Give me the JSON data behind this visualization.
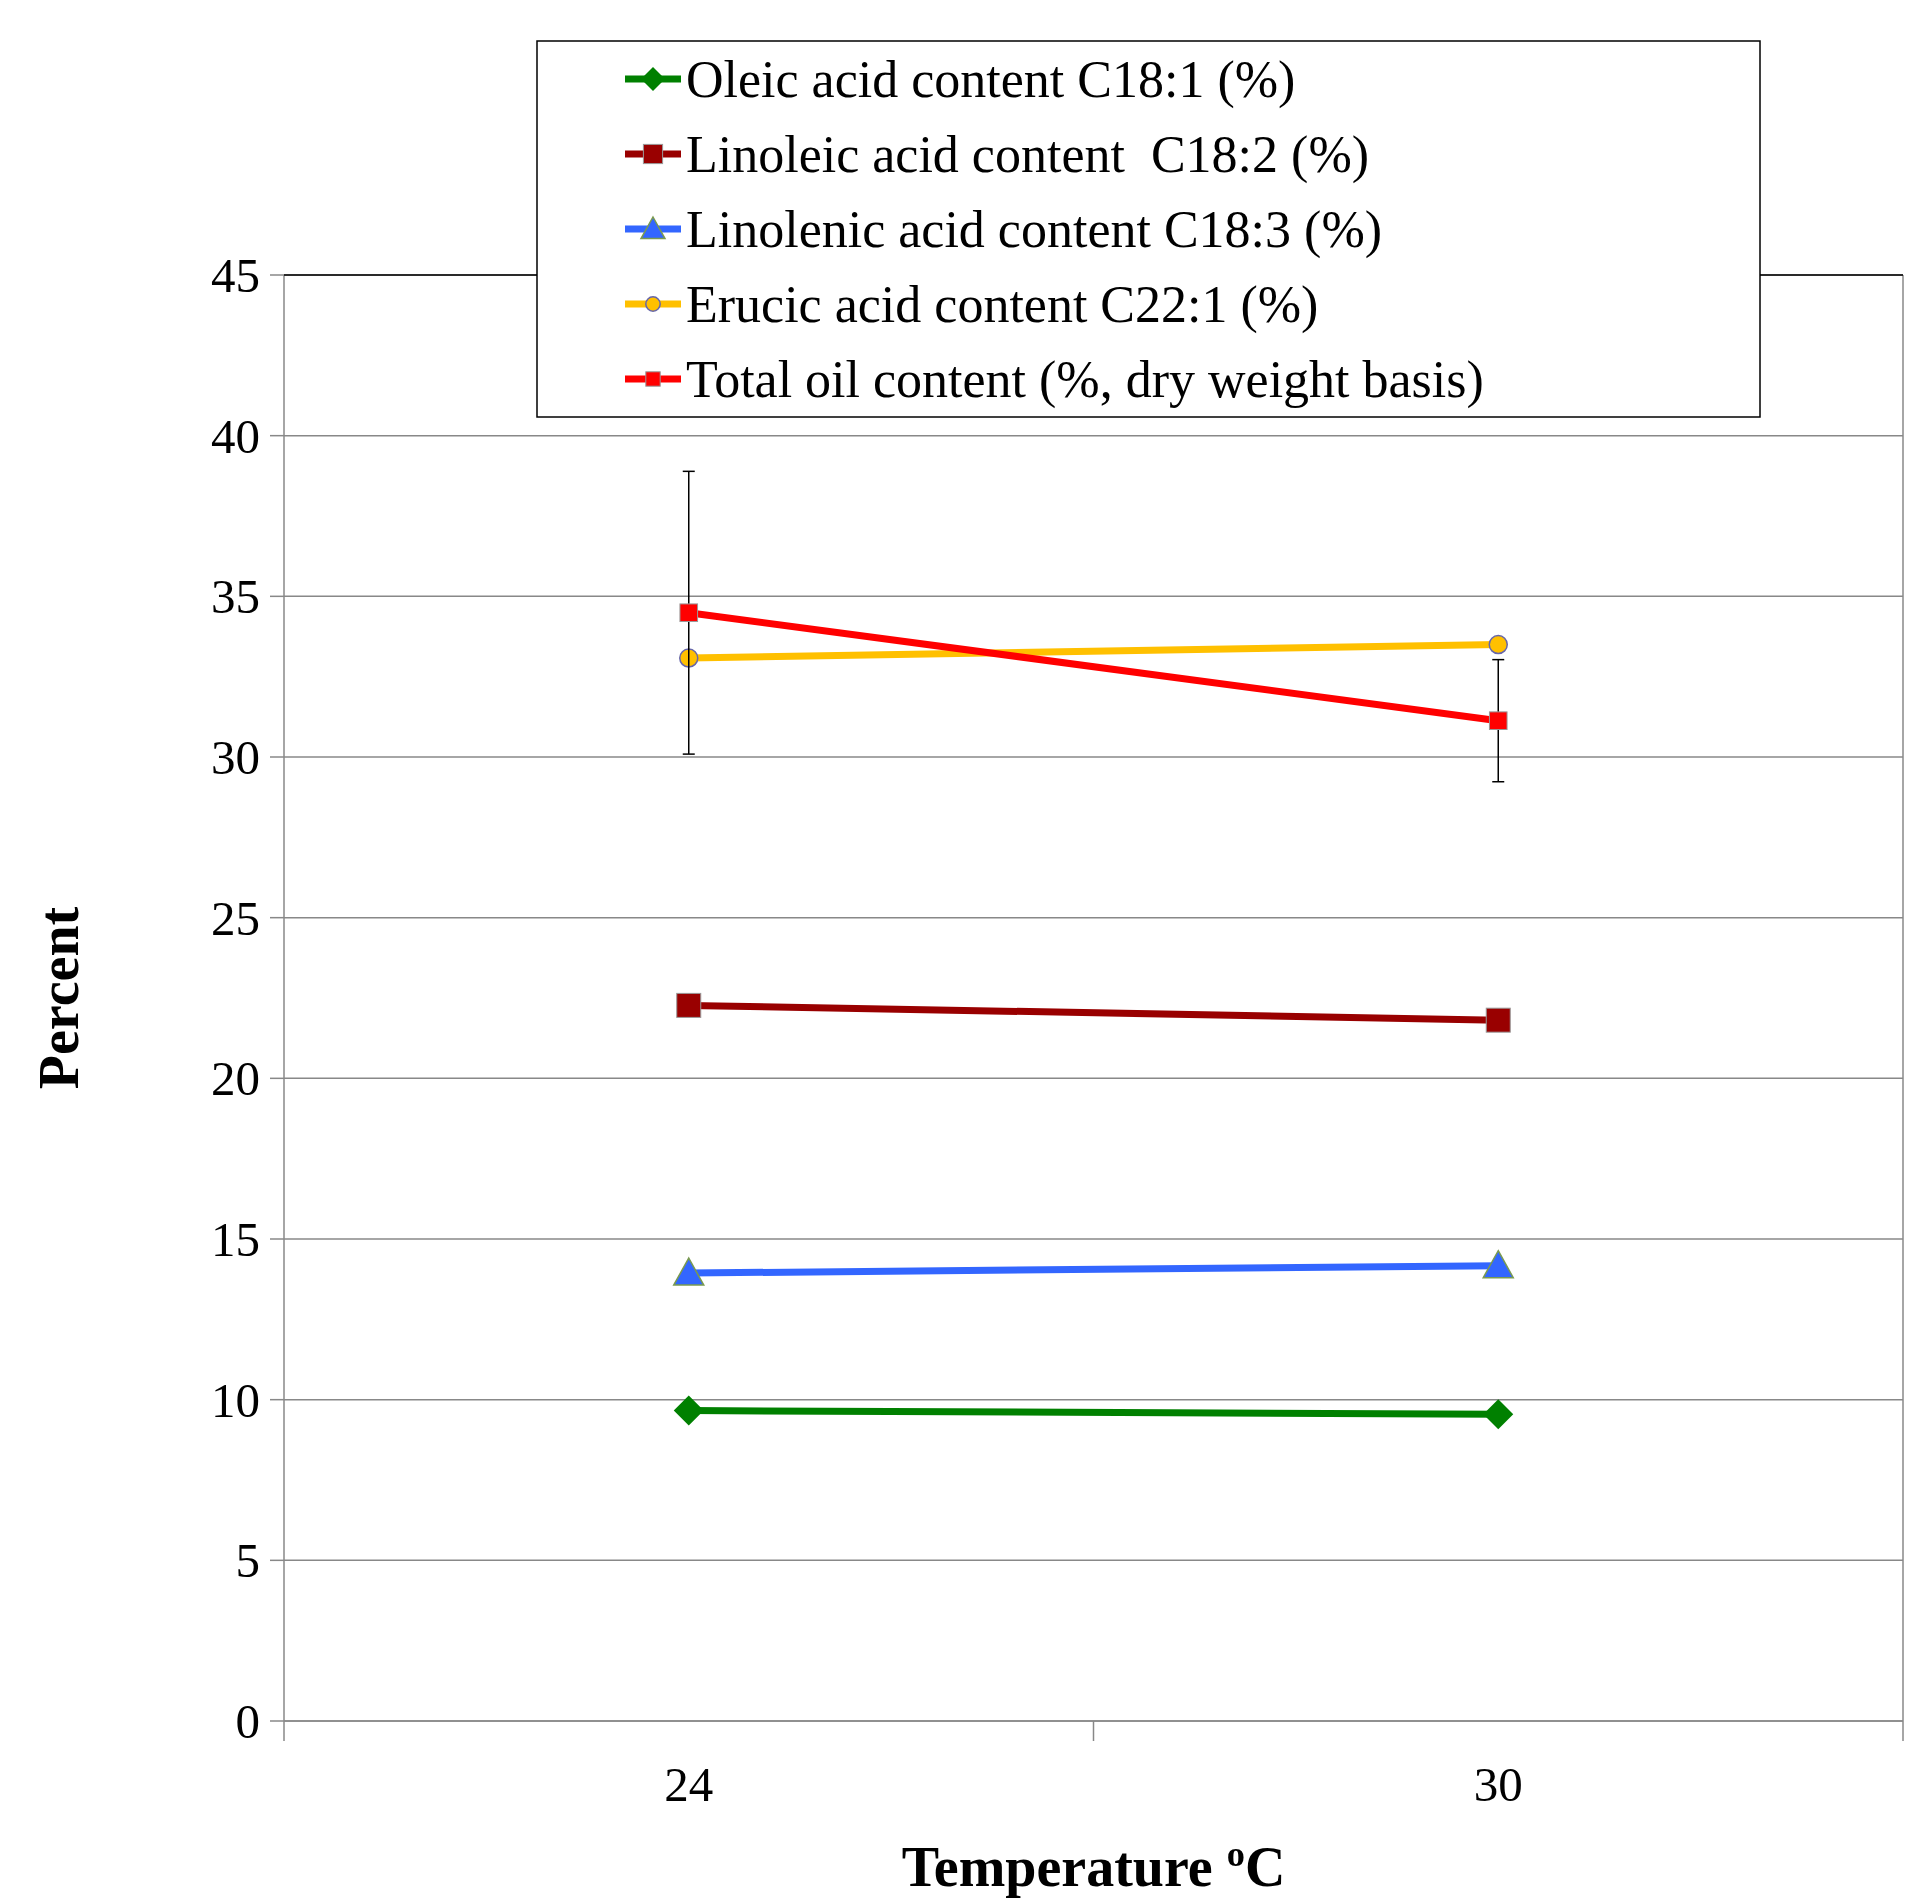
{
  "chart_data": {
    "type": "line",
    "xlabel": "Temperature $^{o}$C",
    "ylabel": "Percent",
    "categories": [
      "24",
      "30"
    ],
    "ylim": [
      0,
      45
    ],
    "yticks": [
      0,
      5,
      10,
      15,
      20,
      25,
      30,
      35,
      40,
      45
    ],
    "grid": "y",
    "legend": "top",
    "line_style": "solid",
    "series": [
      {
        "name": "Oleic acid content C18:1 (%)",
        "color": "#008000",
        "marker": "diamond",
        "values": [
          9.66,
          9.55
        ]
      },
      {
        "name": "Linoleic acid content  C18:2 (%)",
        "color": "#990000",
        "marker": "square",
        "values": [
          22.27,
          21.81
        ]
      },
      {
        "name": "Linolenic acid content C18:3 (%)",
        "color": "#3366ff",
        "marker": "triangle",
        "values": [
          13.94,
          14.17
        ]
      },
      {
        "name": "Erucic acid content C22:1 (%)",
        "color": "#ffc000",
        "marker": "circle",
        "values": [
          33.08,
          33.5
        ]
      },
      {
        "name": "Total oil content (%, dry weight basis)",
        "color": "#ff0000",
        "marker": "square",
        "values": [
          34.49,
          31.13
        ],
        "errors": [
          4.4,
          1.9
        ]
      }
    ]
  }
}
